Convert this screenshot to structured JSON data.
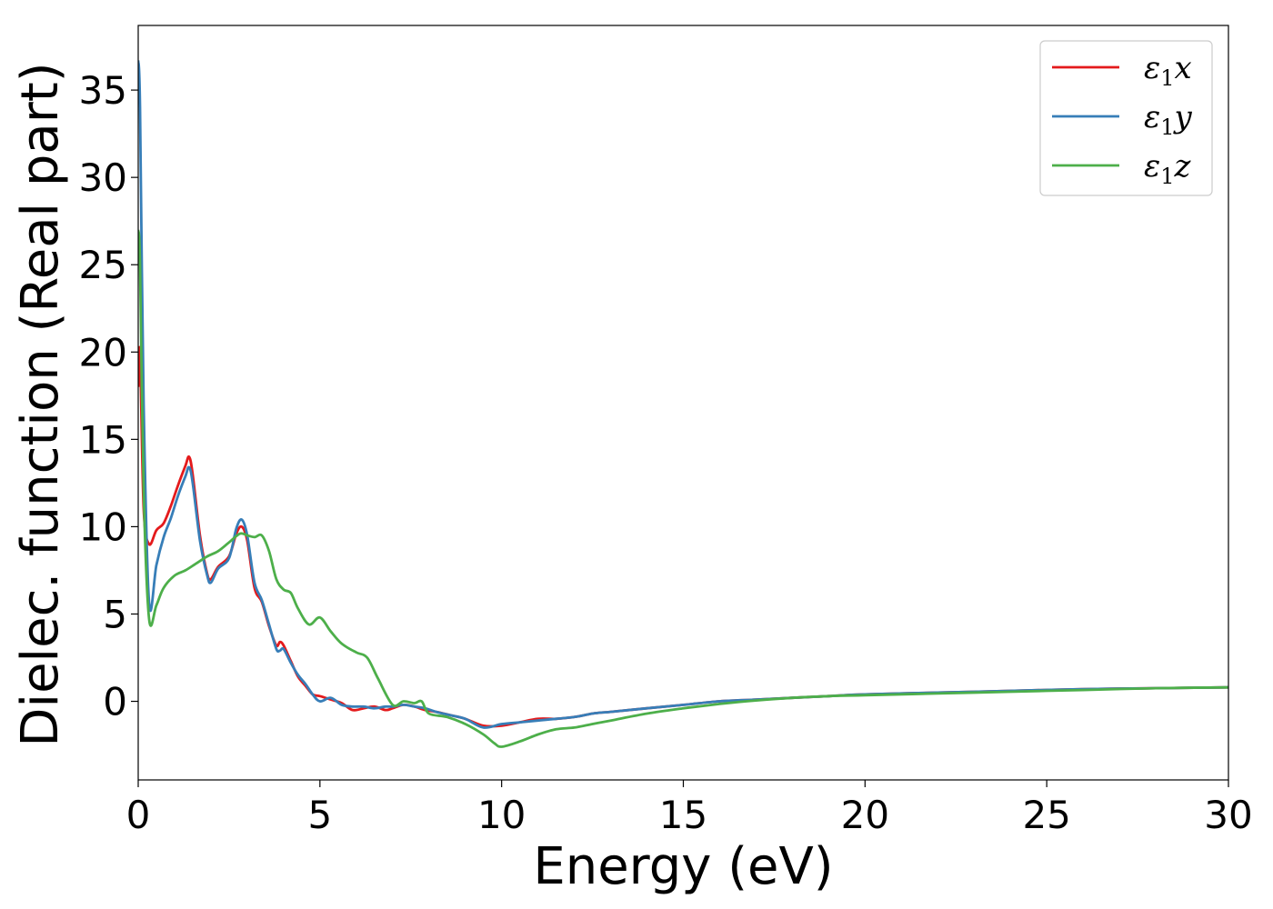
{
  "chart_data": {
    "type": "line",
    "title": "",
    "xlabel": "Energy (eV)",
    "ylabel": "Dielec. function (Real part)",
    "xlim": [
      0,
      30
    ],
    "ylim": [
      -4.5,
      38.7
    ],
    "xticks": [
      0,
      5,
      10,
      15,
      20,
      25,
      30
    ],
    "yticks": [
      0,
      5,
      10,
      15,
      20,
      25,
      30,
      35
    ],
    "grid": false,
    "legend_position": "top-right",
    "series": [
      {
        "name": "ε1x",
        "legend_symbol": "ε",
        "legend_sub": "1",
        "legend_var": "x",
        "color": "#e41a1c",
        "x": [
          0.0,
          0.05,
          0.15,
          0.3,
          0.5,
          0.7,
          0.9,
          1.1,
          1.3,
          1.4,
          1.5,
          1.7,
          1.9,
          2.0,
          2.2,
          2.5,
          2.7,
          2.85,
          3.0,
          3.2,
          3.4,
          3.6,
          3.8,
          3.9,
          4.0,
          4.2,
          4.4,
          4.6,
          4.8,
          5.0,
          5.3,
          5.6,
          5.9,
          6.2,
          6.5,
          6.8,
          7.0,
          7.3,
          7.6,
          7.9,
          8.2,
          8.6,
          9.0,
          9.5,
          10.0,
          10.5,
          11.0,
          11.5,
          12.0,
          12.5,
          13.0,
          14.0,
          15.0,
          16.0,
          17.0,
          18.0,
          19.0,
          20.0,
          22.0,
          24.0,
          26.0,
          28.0,
          30.0
        ],
        "y": [
          18.0,
          20.0,
          11.0,
          9.0,
          9.8,
          10.2,
          11.2,
          12.4,
          13.5,
          14.0,
          13.0,
          9.5,
          7.3,
          7.0,
          7.7,
          8.3,
          9.6,
          10.0,
          9.2,
          6.5,
          5.7,
          4.3,
          3.2,
          3.4,
          3.2,
          2.3,
          1.4,
          0.9,
          0.4,
          0.3,
          0.1,
          -0.1,
          -0.5,
          -0.4,
          -0.3,
          -0.5,
          -0.4,
          -0.2,
          -0.3,
          -0.5,
          -0.6,
          -0.8,
          -1.0,
          -1.4,
          -1.4,
          -1.2,
          -1.0,
          -1.0,
          -0.9,
          -0.7,
          -0.6,
          -0.4,
          -0.2,
          0.0,
          0.1,
          0.2,
          0.3,
          0.4,
          0.5,
          0.6,
          0.7,
          0.75,
          0.8
        ]
      },
      {
        "name": "ε1y",
        "legend_symbol": "ε",
        "legend_sub": "1",
        "legend_var": "y",
        "color": "#377eb8",
        "x": [
          0.0,
          0.05,
          0.15,
          0.3,
          0.5,
          0.7,
          0.9,
          1.1,
          1.3,
          1.4,
          1.5,
          1.7,
          1.9,
          2.0,
          2.2,
          2.5,
          2.7,
          2.85,
          3.0,
          3.2,
          3.4,
          3.6,
          3.8,
          3.9,
          4.0,
          4.2,
          4.4,
          4.6,
          4.8,
          5.0,
          5.3,
          5.6,
          5.9,
          6.2,
          6.5,
          6.8,
          7.0,
          7.3,
          7.6,
          7.9,
          8.2,
          8.6,
          9.0,
          9.5,
          10.0,
          10.5,
          11.0,
          11.5,
          12.0,
          12.5,
          13.0,
          14.0,
          15.0,
          16.0,
          17.0,
          18.0,
          19.0,
          20.0,
          22.0,
          24.0,
          26.0,
          28.0,
          30.0
        ],
        "y": [
          36.7,
          34.0,
          17.0,
          5.6,
          7.8,
          9.4,
          10.5,
          11.8,
          12.9,
          13.4,
          12.5,
          9.2,
          7.2,
          6.8,
          7.6,
          8.2,
          9.9,
          10.4,
          9.5,
          6.8,
          5.8,
          4.4,
          3.0,
          2.9,
          3.0,
          2.2,
          1.5,
          1.0,
          0.4,
          0.0,
          0.2,
          -0.2,
          -0.3,
          -0.3,
          -0.4,
          -0.3,
          -0.3,
          -0.2,
          -0.3,
          -0.4,
          -0.6,
          -0.8,
          -1.0,
          -1.5,
          -1.3,
          -1.2,
          -1.1,
          -1.0,
          -0.9,
          -0.7,
          -0.6,
          -0.4,
          -0.2,
          0.0,
          0.1,
          0.2,
          0.3,
          0.4,
          0.5,
          0.6,
          0.7,
          0.75,
          0.8
        ]
      },
      {
        "name": "ε1z",
        "legend_symbol": "ε",
        "legend_sub": "1",
        "legend_var": "z",
        "color": "#4daf4a",
        "x": [
          0.0,
          0.05,
          0.15,
          0.3,
          0.5,
          0.7,
          1.0,
          1.3,
          1.6,
          1.9,
          2.2,
          2.5,
          2.8,
          3.0,
          3.2,
          3.4,
          3.6,
          3.8,
          4.0,
          4.2,
          4.4,
          4.7,
          5.0,
          5.3,
          5.6,
          6.0,
          6.3,
          6.6,
          7.0,
          7.3,
          7.6,
          7.8,
          8.0,
          8.5,
          9.0,
          9.5,
          9.8,
          10.0,
          10.5,
          11.0,
          11.5,
          12.0,
          12.5,
          13.0,
          14.0,
          15.0,
          16.0,
          17.0,
          18.0,
          19.0,
          20.0,
          22.0,
          24.0,
          26.0,
          28.0,
          30.0
        ],
        "y": [
          27.0,
          25.0,
          12.0,
          4.7,
          5.5,
          6.5,
          7.2,
          7.5,
          7.9,
          8.3,
          8.6,
          9.1,
          9.6,
          9.5,
          9.4,
          9.5,
          8.6,
          7.0,
          6.4,
          6.2,
          5.3,
          4.4,
          4.8,
          4.0,
          3.3,
          2.8,
          2.5,
          1.3,
          -0.2,
          0.0,
          -0.1,
          0.0,
          -0.7,
          -0.9,
          -1.3,
          -1.9,
          -2.4,
          -2.6,
          -2.3,
          -1.9,
          -1.6,
          -1.5,
          -1.3,
          -1.1,
          -0.7,
          -0.4,
          -0.15,
          0.05,
          0.2,
          0.3,
          0.35,
          0.45,
          0.55,
          0.65,
          0.75,
          0.8
        ]
      }
    ]
  }
}
